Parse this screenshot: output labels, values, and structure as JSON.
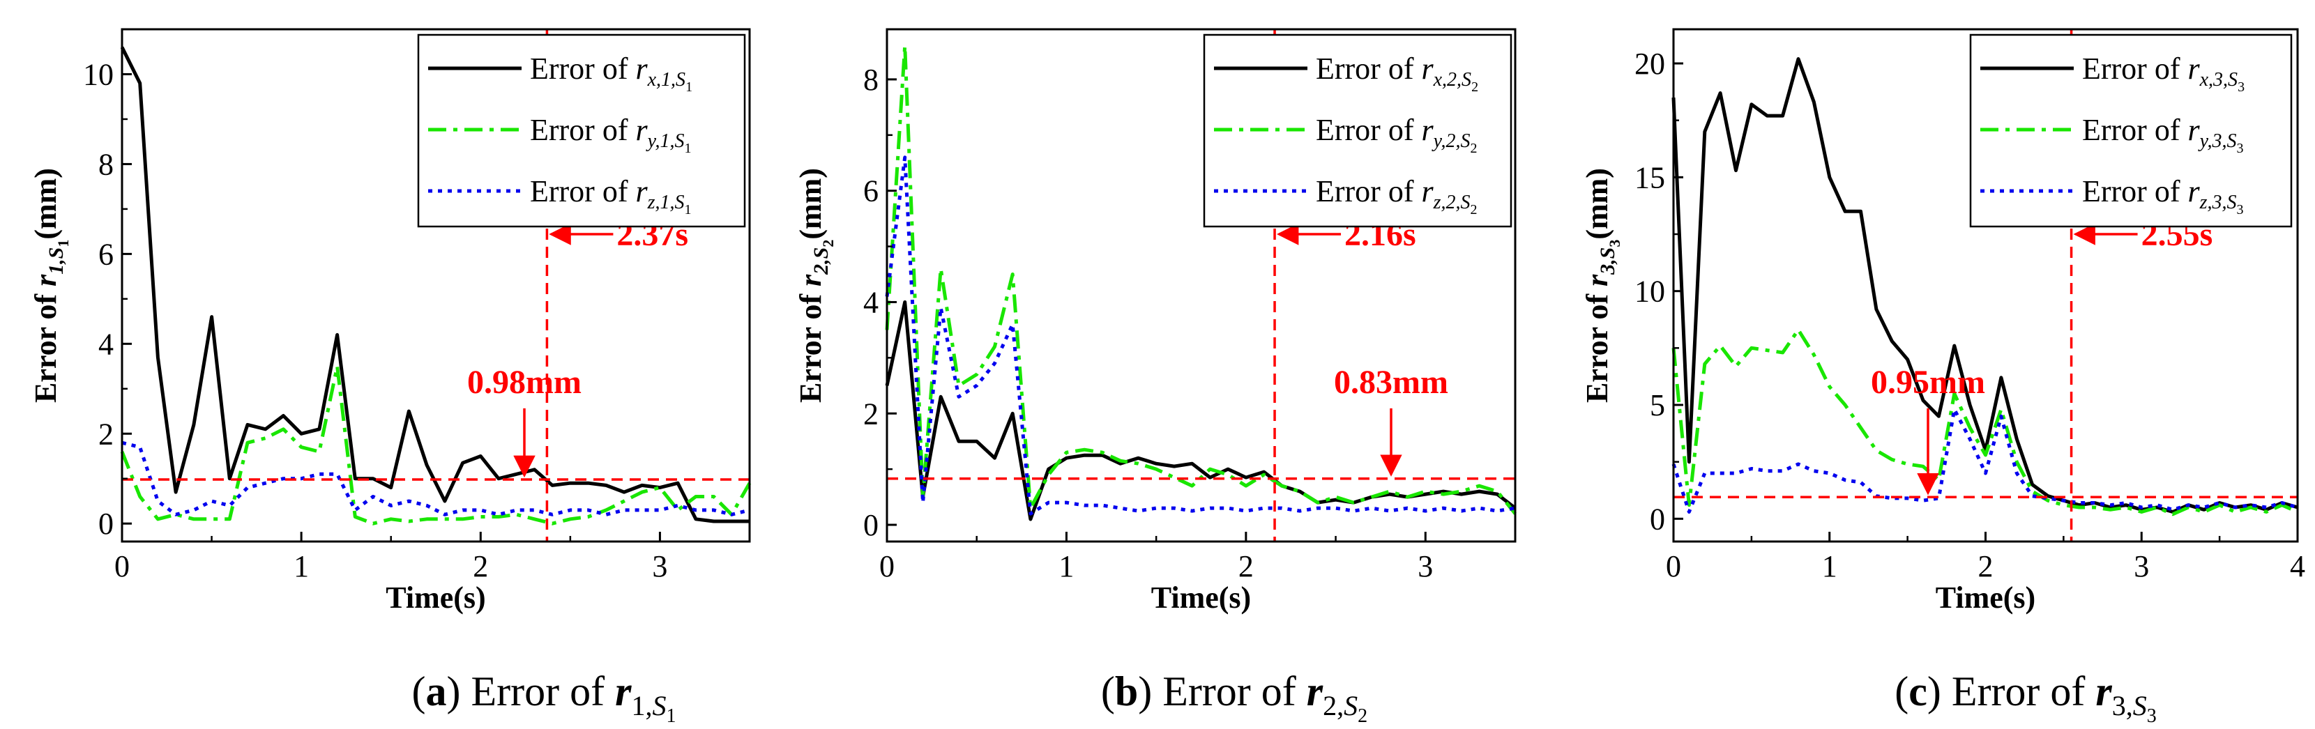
{
  "chart_data": [
    {
      "id": "a",
      "type": "line",
      "caption": {
        "letter": "(a)",
        "text": "Error of",
        "var": "r",
        "sub": "1,",
        "subsub": "S",
        "subsubsub": "1"
      },
      "xlabel": "Time(s)",
      "ylabel": {
        "prefix": "Error of",
        "var": "r",
        "sub": "1,S",
        "subsub": "1",
        "suffix": "(mm)"
      },
      "xlim": [
        0,
        3.5
      ],
      "ylim": [
        -0.4,
        11.0
      ],
      "xticks": [
        0,
        1,
        2,
        3
      ],
      "yticks": [
        0,
        2,
        4,
        6,
        8,
        10
      ],
      "x": [
        0,
        0.1,
        0.2,
        0.3,
        0.4,
        0.5,
        0.6,
        0.7,
        0.8,
        0.9,
        1.0,
        1.1,
        1.2,
        1.3,
        1.4,
        1.5,
        1.6,
        1.7,
        1.8,
        1.9,
        2.0,
        2.1,
        2.2,
        2.3,
        2.4,
        2.5,
        2.6,
        2.7,
        2.8,
        2.9,
        3.0,
        3.1,
        3.2,
        3.3,
        3.4,
        3.5
      ],
      "series": [
        {
          "name": "Error of r_x,1,S1",
          "legend": {
            "prefix": "Error of",
            "var": "r",
            "sub": "x,1,S",
            "subsub": "1"
          },
          "color": "#000000",
          "style": "solid",
          "values": [
            10.6,
            9.8,
            3.7,
            0.7,
            2.2,
            4.6,
            1.0,
            2.2,
            2.1,
            2.4,
            2.0,
            2.1,
            4.2,
            1.0,
            1.0,
            0.8,
            2.5,
            1.3,
            0.5,
            1.35,
            1.5,
            1.0,
            1.1,
            1.2,
            0.85,
            0.9,
            0.9,
            0.85,
            0.7,
            0.85,
            0.8,
            0.9,
            0.1,
            0.05,
            0.05,
            0.05
          ]
        },
        {
          "name": "Error of r_y,1,S1",
          "legend": {
            "prefix": "Error of",
            "var": "r",
            "sub": "y,1,S",
            "subsub": "1"
          },
          "color": "#19e600",
          "style": "dashdot",
          "values": [
            1.6,
            0.6,
            0.1,
            0.2,
            0.1,
            0.1,
            0.1,
            1.8,
            1.9,
            2.1,
            1.7,
            1.6,
            3.5,
            0.15,
            0.0,
            0.1,
            0.05,
            0.1,
            0.1,
            0.1,
            0.15,
            0.15,
            0.2,
            0.1,
            0.0,
            0.1,
            0.15,
            0.3,
            0.5,
            0.7,
            0.8,
            0.3,
            0.6,
            0.6,
            0.2,
            0.9
          ]
        },
        {
          "name": "Error of r_z,1,S1",
          "legend": {
            "prefix": "Error of",
            "var": "r",
            "sub": "z,1,S",
            "subsub": "1"
          },
          "color": "#0000ee",
          "style": "dotted",
          "values": [
            1.8,
            1.7,
            0.5,
            0.2,
            0.3,
            0.5,
            0.4,
            0.8,
            0.9,
            1.0,
            1.0,
            1.1,
            1.1,
            0.3,
            0.6,
            0.4,
            0.5,
            0.4,
            0.2,
            0.3,
            0.3,
            0.2,
            0.3,
            0.3,
            0.2,
            0.3,
            0.3,
            0.2,
            0.3,
            0.3,
            0.3,
            0.4,
            0.3,
            0.3,
            0.2,
            0.3
          ]
        }
      ],
      "vline": {
        "x": 2.37,
        "label": "2.37s"
      },
      "hline": {
        "y": 0.98,
        "label": "0.98mm"
      }
    },
    {
      "id": "b",
      "type": "line",
      "caption": {
        "letter": "(b)",
        "text": "Error of",
        "var": "r",
        "sub": "2,",
        "subsub": "S",
        "subsubsub": "2"
      },
      "xlabel": "Time(s)",
      "ylabel": {
        "prefix": "Error of",
        "var": "r",
        "sub": "2,S",
        "subsub": "2",
        "suffix": "(mm)"
      },
      "xlim": [
        0,
        3.5
      ],
      "ylim": [
        -0.3,
        8.9
      ],
      "xticks": [
        0,
        1,
        2,
        3
      ],
      "yticks": [
        0,
        2,
        4,
        6,
        8
      ],
      "x": [
        0,
        0.1,
        0.2,
        0.3,
        0.4,
        0.5,
        0.6,
        0.7,
        0.8,
        0.9,
        1.0,
        1.1,
        1.2,
        1.3,
        1.4,
        1.5,
        1.6,
        1.7,
        1.8,
        1.9,
        2.0,
        2.1,
        2.2,
        2.3,
        2.4,
        2.5,
        2.6,
        2.7,
        2.8,
        2.9,
        3.0,
        3.1,
        3.2,
        3.3,
        3.4,
        3.5
      ],
      "series": [
        {
          "name": "Error of r_x,2,S2",
          "legend": {
            "prefix": "Error of",
            "var": "r",
            "sub": "x,2,S",
            "subsub": "2"
          },
          "color": "#000000",
          "style": "solid",
          "values": [
            2.5,
            4.0,
            0.5,
            2.3,
            1.5,
            1.5,
            1.2,
            2.0,
            0.1,
            1.0,
            1.2,
            1.25,
            1.25,
            1.1,
            1.2,
            1.1,
            1.05,
            1.1,
            0.85,
            1.0,
            0.85,
            0.95,
            0.7,
            0.6,
            0.4,
            0.45,
            0.4,
            0.5,
            0.55,
            0.5,
            0.55,
            0.6,
            0.55,
            0.6,
            0.55,
            0.3
          ]
        },
        {
          "name": "Error of r_y,2,S2",
          "legend": {
            "prefix": "Error of",
            "var": "r",
            "sub": "y,2,S",
            "subsub": "2"
          },
          "color": "#19e600",
          "style": "dashdot",
          "values": [
            3.5,
            8.6,
            0.5,
            4.6,
            2.5,
            2.7,
            3.2,
            4.5,
            0.3,
            0.9,
            1.3,
            1.35,
            1.3,
            1.15,
            1.1,
            1.0,
            0.85,
            0.7,
            1.0,
            0.9,
            0.7,
            0.9,
            0.7,
            0.6,
            0.4,
            0.5,
            0.4,
            0.5,
            0.6,
            0.5,
            0.6,
            0.55,
            0.6,
            0.7,
            0.6,
            0.2
          ]
        },
        {
          "name": "Error of r_z,2,S2",
          "legend": {
            "prefix": "Error of",
            "var": "r",
            "sub": "z,2,S",
            "subsub": "2"
          },
          "color": "#0000ee",
          "style": "dotted",
          "values": [
            4.1,
            6.6,
            0.4,
            3.9,
            2.3,
            2.5,
            2.9,
            3.6,
            0.2,
            0.4,
            0.4,
            0.35,
            0.35,
            0.3,
            0.25,
            0.3,
            0.3,
            0.25,
            0.3,
            0.3,
            0.25,
            0.3,
            0.3,
            0.25,
            0.3,
            0.3,
            0.25,
            0.3,
            0.25,
            0.3,
            0.25,
            0.3,
            0.25,
            0.3,
            0.25,
            0.3
          ]
        }
      ],
      "vline": {
        "x": 2.16,
        "label": "2.16s"
      },
      "hline": {
        "y": 0.83,
        "label": "0.83mm"
      }
    },
    {
      "id": "c",
      "type": "line",
      "caption": {
        "letter": "(c)",
        "text": "Error of",
        "var": "r",
        "sub": "3,",
        "subsub": "S",
        "subsubsub": "3"
      },
      "xlabel": "Time(s)",
      "ylabel": {
        "prefix": "Error of",
        "var": "r",
        "sub": "3,S",
        "subsub": "3",
        "suffix": "(mm)"
      },
      "xlim": [
        0,
        4
      ],
      "ylim": [
        -1.0,
        21.5
      ],
      "xticks": [
        0,
        1,
        2,
        3,
        4
      ],
      "yticks": [
        0,
        5,
        10,
        15,
        20
      ],
      "x": [
        0,
        0.1,
        0.2,
        0.3,
        0.4,
        0.5,
        0.6,
        0.7,
        0.8,
        0.9,
        1.0,
        1.1,
        1.2,
        1.3,
        1.4,
        1.5,
        1.6,
        1.7,
        1.8,
        1.9,
        2.0,
        2.1,
        2.2,
        2.3,
        2.4,
        2.5,
        2.6,
        2.7,
        2.8,
        2.9,
        3.0,
        3.1,
        3.2,
        3.3,
        3.4,
        3.5,
        3.6,
        3.7,
        3.8,
        3.9,
        4.0
      ],
      "series": [
        {
          "name": "Error of r_x,3,S3",
          "legend": {
            "prefix": "Error of",
            "var": "r",
            "sub": "x,3,S",
            "subsub": "3"
          },
          "color": "#000000",
          "style": "solid",
          "values": [
            18.5,
            2.5,
            17.0,
            18.7,
            15.3,
            18.2,
            17.7,
            17.7,
            20.2,
            18.3,
            15.0,
            13.5,
            13.5,
            9.2,
            7.8,
            7.0,
            5.2,
            4.5,
            7.6,
            5.0,
            3.0,
            6.2,
            3.5,
            1.5,
            1.0,
            0.8,
            0.6,
            0.7,
            0.5,
            0.6,
            0.4,
            0.5,
            0.3,
            0.6,
            0.4,
            0.7,
            0.5,
            0.6,
            0.4,
            0.7,
            0.5
          ]
        },
        {
          "name": "Error of r_y,3,S3",
          "legend": {
            "prefix": "Error of",
            "var": "r",
            "sub": "y,3,S",
            "subsub": "3"
          },
          "color": "#19e600",
          "style": "dashdot",
          "values": [
            7.5,
            0.6,
            6.8,
            7.6,
            6.7,
            7.5,
            7.4,
            7.3,
            8.3,
            7.2,
            5.8,
            5.0,
            4.0,
            3.0,
            2.6,
            2.4,
            2.3,
            1.7,
            5.5,
            4.0,
            2.8,
            4.8,
            2.5,
            1.2,
            0.8,
            0.6,
            0.5,
            0.5,
            0.4,
            0.5,
            0.3,
            0.5,
            0.2,
            0.5,
            0.3,
            0.6,
            0.3,
            0.5,
            0.3,
            0.6,
            0.3
          ]
        },
        {
          "name": "Error of r_z,3,S3",
          "legend": {
            "prefix": "Error of",
            "var": "r",
            "sub": "z,3,S",
            "subsub": "3"
          },
          "color": "#0000ee",
          "style": "dotted",
          "values": [
            2.4,
            0.3,
            2.0,
            2.0,
            2.0,
            2.2,
            2.1,
            2.1,
            2.4,
            2.1,
            2.0,
            1.7,
            1.6,
            1.0,
            0.9,
            0.9,
            0.8,
            0.9,
            4.8,
            3.5,
            2.0,
            4.5,
            2.0,
            1.0,
            0.9,
            0.8,
            0.7,
            0.7,
            0.6,
            0.7,
            0.5,
            0.6,
            0.4,
            0.6,
            0.5,
            0.7,
            0.5,
            0.6,
            0.5,
            0.7,
            0.5
          ]
        }
      ],
      "vline": {
        "x": 2.55,
        "label": "2.55s"
      },
      "hline": {
        "y": 0.95,
        "label": "0.95mm"
      }
    }
  ]
}
